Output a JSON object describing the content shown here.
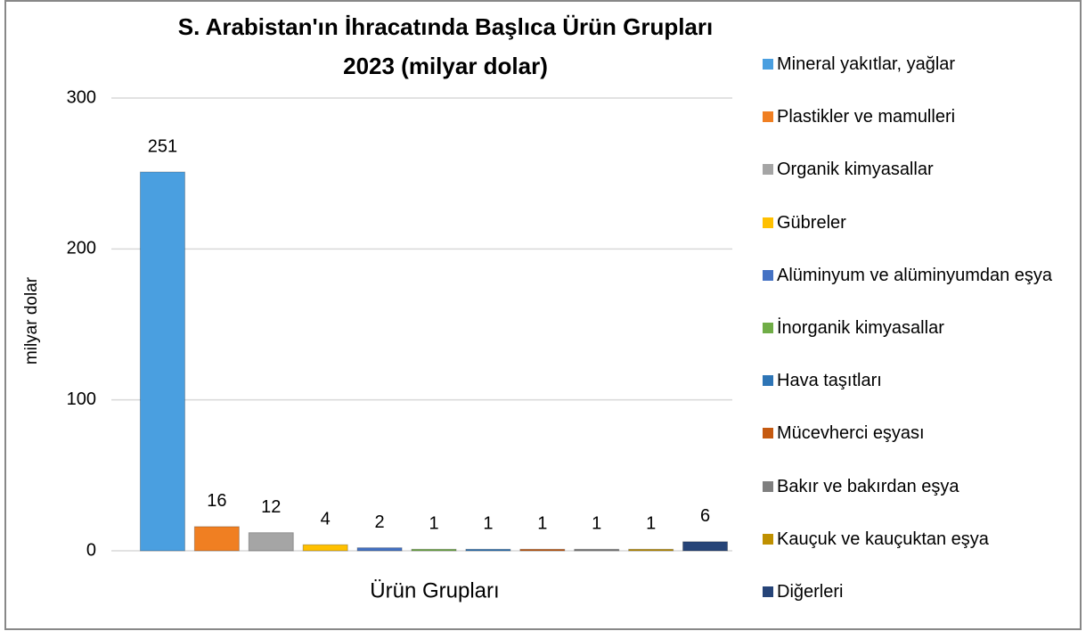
{
  "chart_data": {
    "type": "bar",
    "title": "S. Arabistan'ın İhracatında Başlıca Ürün Grupları",
    "subtitle": "2023 (milyar dolar)",
    "x_label": "Ürün Grupları",
    "y_label": "milyar dolar",
    "categories": [
      "Mineral yakıtlar, yağlar",
      "Plastikler ve mamulleri",
      "Organik kimyasallar",
      "Gübreler",
      "Alüminyum ve alüminyumdan eşya",
      "İnorganik kimyasallar",
      "Hava taşıtları",
      "Mücevherci eşyası",
      "Bakır ve bakırdan eşya",
      "Kauçuk ve kauçuktan eşya",
      "Diğerleri"
    ],
    "values": [
      251,
      16,
      12,
      4,
      2,
      1,
      1,
      1,
      1,
      1,
      6
    ],
    "colors": [
      "#4a9fe0",
      "#f07f22",
      "#a5a5a5",
      "#ffc000",
      "#4472c4",
      "#70ad47",
      "#2e75b6",
      "#c55a11",
      "#7f7f7f",
      "#bf9000",
      "#264478"
    ],
    "ylim": [
      0,
      300
    ],
    "yticks": [
      0,
      100,
      200,
      300
    ],
    "grid": true,
    "legend": "right"
  }
}
